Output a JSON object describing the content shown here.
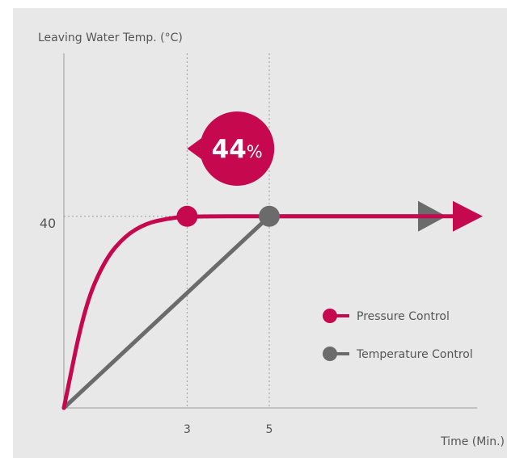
{
  "chart_data": {
    "type": "line",
    "ylabel": "Leaving Water Temp. (°C)",
    "xlabel": "Time (Min.)",
    "x_ticks": [
      "3",
      "5"
    ],
    "y_ticks": [
      "40"
    ],
    "xlim": [
      0,
      7.6
    ],
    "ylim": [
      0,
      52
    ],
    "series": [
      {
        "name": "Pressure Control",
        "color": "#c6084f",
        "points": [
          [
            0,
            0
          ],
          [
            0.5,
            21
          ],
          [
            1,
            31
          ],
          [
            1.5,
            36
          ],
          [
            2,
            38.5
          ],
          [
            2.5,
            39.5
          ],
          [
            3,
            40
          ],
          [
            5,
            40
          ]
        ],
        "marker_at": [
          3,
          40
        ]
      },
      {
        "name": "Temperature Control",
        "color": "#6b6b6b",
        "points": [
          [
            0,
            0
          ],
          [
            5,
            40
          ]
        ],
        "marker_at": [
          5,
          40
        ]
      }
    ],
    "annotation": {
      "value": "44",
      "unit": "%",
      "from_x": 5,
      "to_x": 3
    },
    "legend_position": "bottom-right",
    "grid": false
  }
}
